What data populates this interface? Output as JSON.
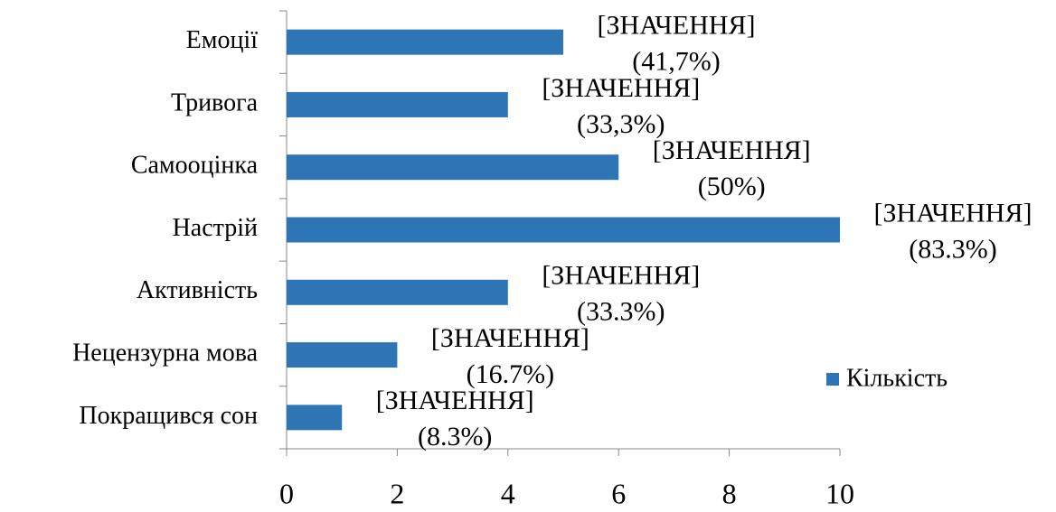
{
  "chart_data": {
    "type": "bar",
    "orientation": "horizontal",
    "categories": [
      "Емоції",
      "Тривога",
      "Самооцінка",
      "Настрій",
      "Активність",
      "Нецензурна мова",
      "Покращився сон"
    ],
    "series": [
      {
        "name": "Кількість",
        "color": "#2e75b6",
        "values": [
          5,
          4,
          6,
          10,
          4,
          2,
          1
        ]
      }
    ],
    "value_placeholder": "[ЗНАЧЕННЯ]",
    "percent_labels": [
      "(41,7%)",
      "(33,3%)",
      "(50%)",
      "(83.3%)",
      "(33.3%)",
      "(16.7%)",
      "(8.3%)"
    ],
    "xlim": [
      0,
      10
    ],
    "xticks": [
      0,
      2,
      4,
      6,
      8,
      10
    ],
    "legend": "right"
  }
}
